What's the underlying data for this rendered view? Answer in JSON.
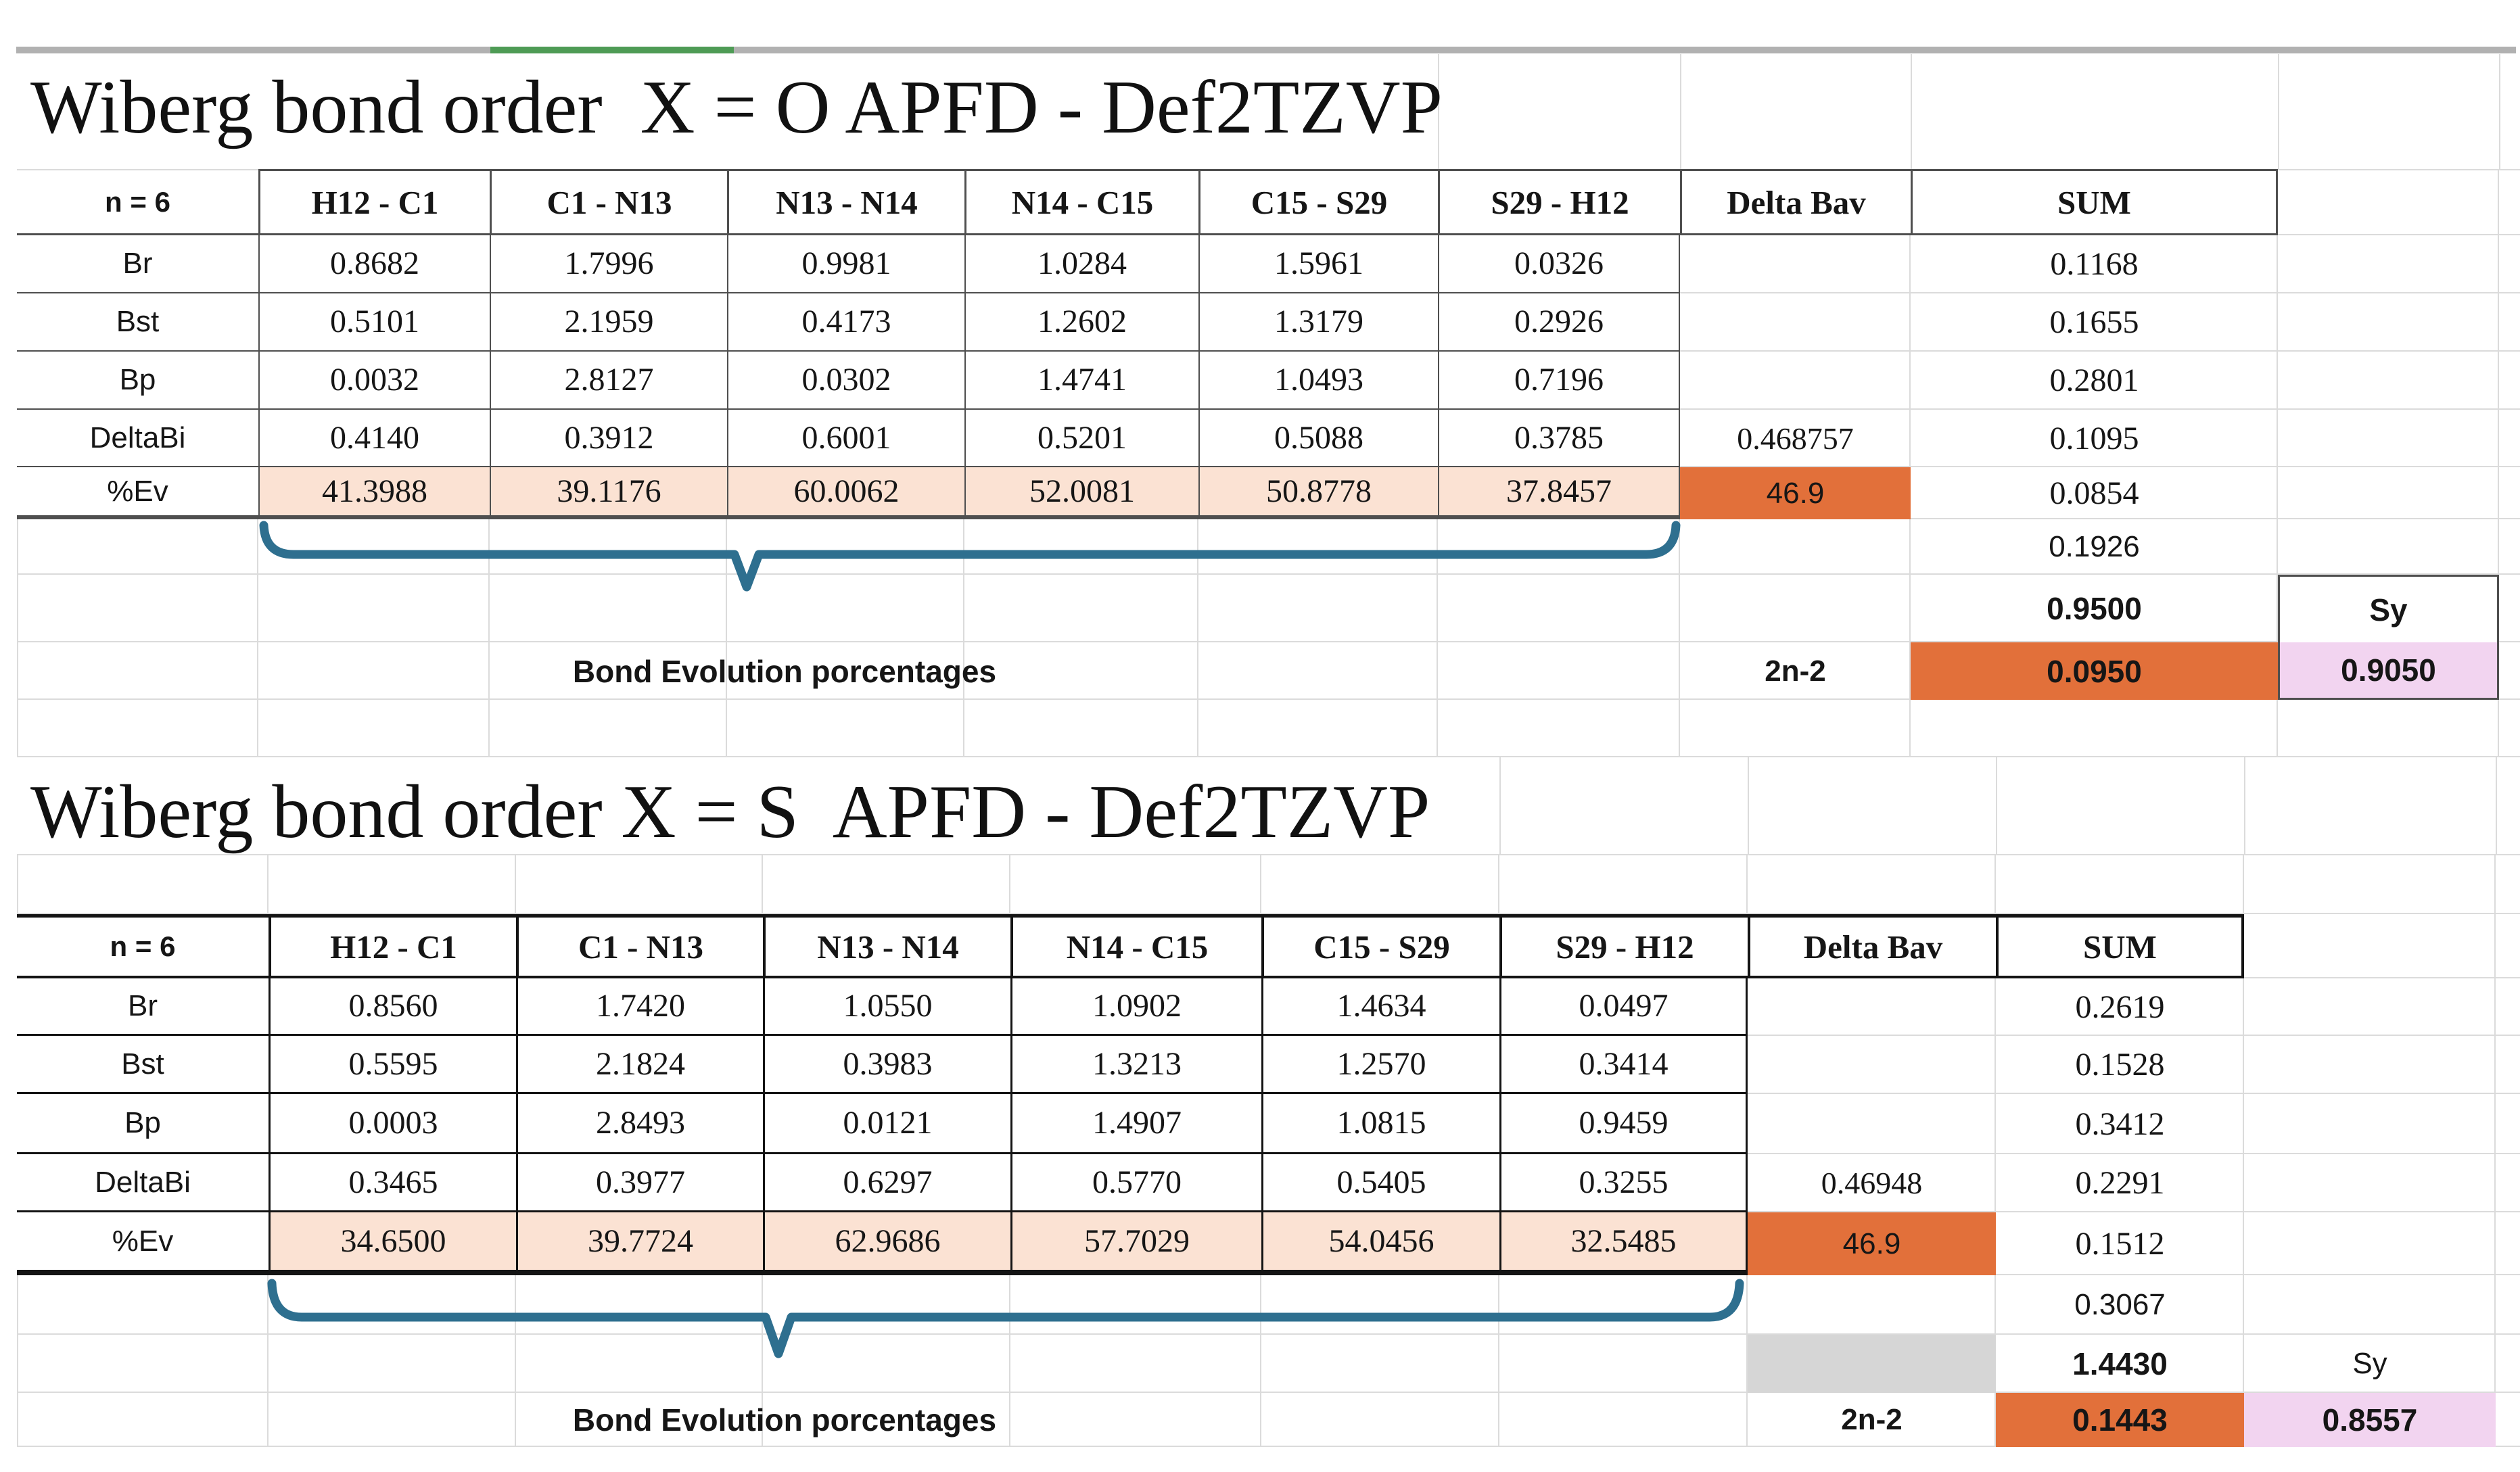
{
  "window": {
    "top_bar": {
      "bar_color": "#B1B1B1",
      "accent_color": "#4E9B55"
    }
  },
  "colors": {
    "peach": "#FBE2D3",
    "orange": "#E2703A",
    "pink": "#F2D4F0",
    "gray_cell": "#D6D6D6",
    "brace": "#2E6F8F",
    "table1_border": "#4F4F4F",
    "table2_border": "#141414",
    "gridline": "#DBDBDB"
  },
  "tables": [
    {
      "title": "Wiberg bond order  X = O APFD - Def2TZVP",
      "columns": [
        "n = 6",
        "H12 - C1",
        "C1 - N13",
        "N13 - N14",
        "N14 - C15",
        "C15 - S29",
        "S29 - H12",
        "Delta Bav",
        "SUM"
      ],
      "rows": [
        {
          "label": "Br",
          "values": [
            "0.8682",
            "1.7996",
            "0.9981",
            "1.0284",
            "1.5961",
            "0.0326"
          ],
          "delta_bav": "",
          "sum": "0.1168"
        },
        {
          "label": "Bst",
          "values": [
            "0.5101",
            "2.1959",
            "0.4173",
            "1.2602",
            "1.3179",
            "0.2926"
          ],
          "delta_bav": "",
          "sum": "0.1655"
        },
        {
          "label": "Bp",
          "values": [
            "0.0032",
            "2.8127",
            "0.0302",
            "1.4741",
            "1.0493",
            "0.7196"
          ],
          "delta_bav": "",
          "sum": "0.2801"
        },
        {
          "label": "DeltaBi",
          "values": [
            "0.4140",
            "0.3912",
            "0.6001",
            "0.5201",
            "0.5088",
            "0.3785"
          ],
          "delta_bav": "0.468757",
          "sum": "0.1095"
        },
        {
          "label": "%Ev",
          "values": [
            "41.3988",
            "39.1176",
            "60.0062",
            "52.0081",
            "50.8778",
            "37.8457"
          ],
          "delta_bav": "46.9",
          "sum": "0.0854"
        }
      ],
      "below": {
        "extra_sum": "0.1926",
        "total_sum": "0.9500",
        "sy_label": "Sy",
        "formula_label": "2n-2",
        "result": "0.0950",
        "sy_value": "0.9050",
        "brace_label": "Bond Evolution porcentages"
      }
    },
    {
      "title": "Wiberg bond order X = S  APFD - Def2TZVP",
      "columns": [
        "n = 6",
        "H12 - C1",
        "C1 - N13",
        "N13 - N14",
        "N14 - C15",
        "C15 - S29",
        "S29 - H12",
        "Delta Bav",
        "SUM"
      ],
      "rows": [
        {
          "label": "Br",
          "values": [
            "0.8560",
            "1.7420",
            "1.0550",
            "1.0902",
            "1.4634",
            "0.0497"
          ],
          "delta_bav": "",
          "sum": "0.2619"
        },
        {
          "label": "Bst",
          "values": [
            "0.5595",
            "2.1824",
            "0.3983",
            "1.3213",
            "1.2570",
            "0.3414"
          ],
          "delta_bav": "",
          "sum": "0.1528"
        },
        {
          "label": "Bp",
          "values": [
            "0.0003",
            "2.8493",
            "0.0121",
            "1.4907",
            "1.0815",
            "0.9459"
          ],
          "delta_bav": "",
          "sum": "0.3412"
        },
        {
          "label": "DeltaBi",
          "values": [
            "0.3465",
            "0.3977",
            "0.6297",
            "0.5770",
            "0.5405",
            "0.3255"
          ],
          "delta_bav": "0.46948",
          "sum": "0.2291"
        },
        {
          "label": "%Ev",
          "values": [
            "34.6500",
            "39.7724",
            "62.9686",
            "57.7029",
            "54.0456",
            "32.5485"
          ],
          "delta_bav": "46.9",
          "sum": "0.1512"
        }
      ],
      "below": {
        "extra_sum": "0.3067",
        "total_sum": "1.4430",
        "sy_label": "Sy",
        "formula_label": "2n-2",
        "result": "0.1443",
        "sy_value": "0.8557",
        "brace_label": "Bond Evolution porcentages"
      }
    }
  ]
}
